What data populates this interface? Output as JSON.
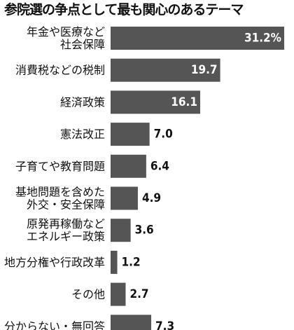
{
  "chart_data": {
    "type": "bar",
    "orientation": "horizontal",
    "title": "参院選の争点として最も関心のあるテーマ",
    "value_unit": "%",
    "categories": [
      [
        "年金や医療など",
        "社会保障"
      ],
      [
        "消費税などの税制"
      ],
      [
        "経済政策"
      ],
      [
        "憲法改正"
      ],
      [
        "子育てや教育問題"
      ],
      [
        "基地問題を含めた",
        "外交・安全保障"
      ],
      [
        "原発再稼働など",
        "エネルギー政策"
      ],
      [
        "地方分権や行政改革"
      ],
      [
        "その他"
      ],
      [
        "分からない・無回答"
      ]
    ],
    "values": [
      31.2,
      19.7,
      16.1,
      7.0,
      6.4,
      4.9,
      3.6,
      1.2,
      2.7,
      7.3
    ],
    "value_labels": [
      "31.2%",
      "19.7",
      "16.1",
      "7.0",
      "6.4",
      "4.9",
      "3.6",
      "1.2",
      "2.7",
      "7.3"
    ],
    "xlim": [
      0,
      31.2
    ],
    "grid": false,
    "legend": "none",
    "bar_color": "#555555"
  }
}
